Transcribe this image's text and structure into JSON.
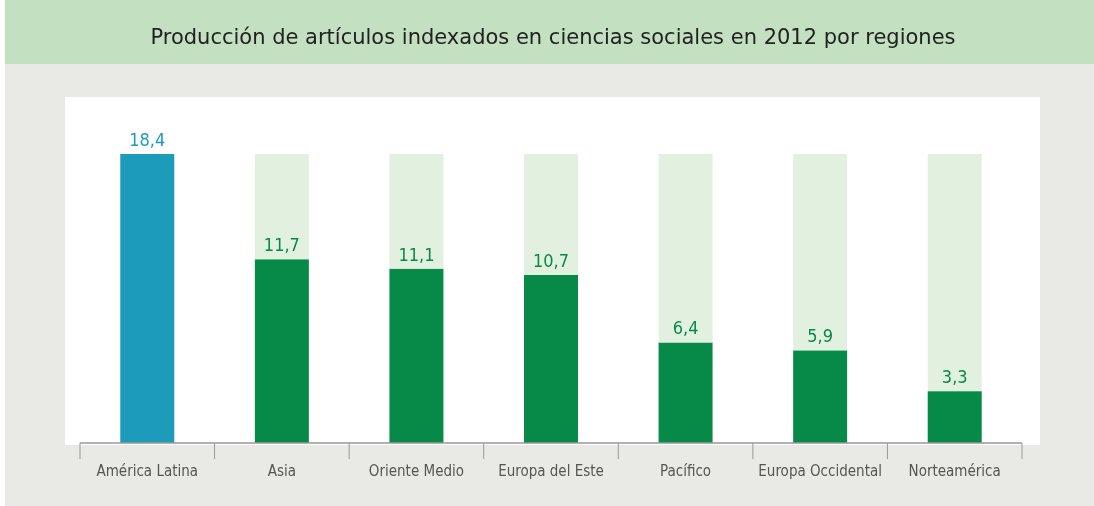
{
  "chart_data": {
    "type": "bar",
    "title": "Producción de artículos indexados en ciencias sociales en 2012 por regiones",
    "categories": [
      "América Latina",
      "Asia",
      "Oriente Medio",
      "Europa del Este",
      "Pacífico",
      "Europa Occidental",
      "Norteamérica"
    ],
    "stacked": true,
    "ylim": [
      0,
      18.4
    ],
    "tick_labels": "x",
    "series": [
      {
        "colors": [
          "#1c9bbb",
          "#078a47",
          "#078a47",
          "#078a47",
          "#078a47",
          "#078a47",
          "#078a47"
        ],
        "values": [
          18.4,
          11.7,
          11.1,
          10.7,
          6.4,
          5.9,
          3.3
        ],
        "value_labels": [
          "18,4",
          "11,7",
          "11,1",
          "10,7",
          "6,4",
          "5,9",
          "3,3"
        ]
      },
      {
        "color": "#e2f0e0",
        "values": [
          null,
          6.7,
          7.3,
          7.7,
          12.0,
          12.5,
          15.1
        ]
      }
    ]
  }
}
